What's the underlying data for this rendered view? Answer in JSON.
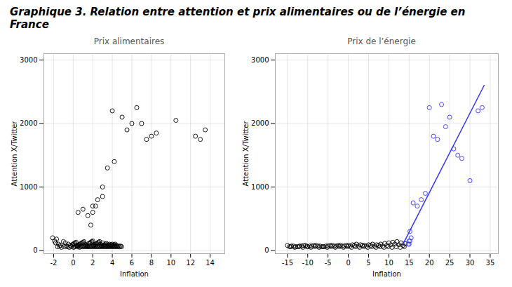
{
  "title": "Graphique 3. Relation entre attention et prix alimentaires ou de l’énergie en France",
  "chart_data": [
    {
      "type": "scatter",
      "title": "Prix alimentaires",
      "xlabel": "Inflation",
      "ylabel": "Attention X/Twitter",
      "xlim": [
        -3,
        15.5
      ],
      "ylim": [
        -50,
        3100
      ],
      "xticks": [
        -2,
        0,
        2,
        4,
        6,
        8,
        10,
        12,
        14
      ],
      "yticks": [
        0,
        1000,
        2000,
        3000
      ],
      "grid": true,
      "marker": "circle",
      "series": [
        {
          "color": "#000000",
          "x": [
            -2.1,
            -1.9,
            -1.8,
            -1.7,
            -1.5,
            -1.3,
            -1.0,
            -0.8,
            -0.5,
            -0.3,
            -0.1,
            0.0,
            0.1,
            0.2,
            0.3,
            0.4,
            0.5,
            0.6,
            0.7,
            0.8,
            0.9,
            1.0,
            1.1,
            1.2,
            1.3,
            1.4,
            1.5,
            1.6,
            1.7,
            1.8,
            1.9,
            2.0,
            2.1,
            2.2,
            2.3,
            2.4,
            2.5,
            2.6,
            2.7,
            2.8,
            2.9,
            3.0,
            3.1,
            3.2,
            3.3,
            3.4,
            3.5,
            3.6,
            3.7,
            3.8,
            3.9,
            4.0,
            4.1,
            4.2,
            4.3,
            4.4,
            -1.6,
            -1.4,
            -1.2,
            -0.9,
            -0.7,
            -0.6,
            -0.4,
            -0.2,
            0.05,
            0.15,
            0.25,
            0.35,
            0.45,
            0.55,
            0.65,
            0.75,
            0.85,
            0.95,
            1.05,
            1.15,
            1.25,
            1.35,
            1.45,
            1.55,
            1.65,
            1.75,
            1.85,
            1.95,
            2.05,
            2.15,
            2.25,
            2.35,
            2.45,
            2.55,
            2.65,
            2.75,
            2.85,
            2.95,
            3.05,
            3.15,
            3.25,
            3.35,
            3.45,
            3.55,
            3.65,
            3.75,
            3.85,
            3.95,
            4.05,
            4.15,
            4.25,
            4.35,
            4.45,
            4.55,
            4.65,
            4.75,
            4.85,
            4.95
          ],
          "values": [
            200,
            150,
            120,
            180,
            100,
            80,
            140,
            120,
            100,
            80,
            90,
            100,
            110,
            120,
            130,
            70,
            80,
            90,
            100,
            110,
            120,
            130,
            140,
            100,
            90,
            80,
            70,
            110,
            120,
            130,
            140,
            150,
            80,
            90,
            100,
            110,
            120,
            130,
            140,
            100,
            80,
            120,
            80,
            90,
            100,
            110,
            80,
            90,
            100,
            80,
            90,
            100,
            80,
            90,
            100,
            80,
            60,
            70,
            50,
            60,
            70,
            60,
            50,
            60,
            50,
            60,
            70,
            80,
            60,
            70,
            50,
            60,
            70,
            60,
            70,
            60,
            70,
            60,
            70,
            60,
            70,
            60,
            70,
            60,
            70,
            60,
            70,
            60,
            70,
            60,
            70,
            60,
            70,
            60,
            70,
            60,
            70,
            60,
            70,
            60,
            70,
            60,
            70,
            60,
            70,
            60,
            70,
            60,
            70,
            60,
            70,
            60,
            70,
            60
          ]
        },
        {
          "color": "#000000",
          "x": [
            0.5,
            1.0,
            1.5,
            1.8,
            2.0,
            2.5,
            3.0
          ],
          "values": [
            600,
            650,
            550,
            400,
            700,
            800,
            850
          ]
        },
        {
          "color": "#000000",
          "x": [
            2.0,
            2.3,
            3.0,
            3.5,
            4.0,
            4.2,
            5.0,
            5.5,
            6.0,
            6.5,
            7.0,
            7.5,
            8.0,
            8.5,
            10.5,
            12.5,
            13.0,
            13.5
          ],
          "values": [
            600,
            700,
            1000,
            1300,
            2200,
            1400,
            2100,
            1900,
            2000,
            2250,
            2000,
            1750,
            1800,
            1850,
            2050,
            1800,
            1750,
            1900
          ]
        }
      ]
    },
    {
      "type": "scatter",
      "title": "Prix de l’énergie",
      "xlabel": "Inflation",
      "ylabel": "Attention X/Twitter",
      "xlim": [
        -18,
        37
      ],
      "ylim": [
        -50,
        3100
      ],
      "xticks": [
        -15,
        -10,
        -5,
        0,
        5,
        10,
        15,
        20,
        25,
        30,
        35
      ],
      "yticks": [
        0,
        1000,
        2000,
        3000
      ],
      "grid": true,
      "marker": "circle",
      "series": [
        {
          "color": "#000000",
          "x": [
            -15,
            -14,
            -13,
            -12,
            -11,
            -10,
            -9,
            -8,
            -7,
            -6,
            -5,
            -4,
            -3,
            -2,
            -1,
            0,
            1,
            2,
            3,
            4,
            5,
            6,
            7,
            8,
            9,
            10,
            11,
            12,
            13,
            14,
            -14.5,
            -13.5,
            -12.5,
            -11.5,
            -10.5,
            -9.5,
            -8.5,
            -7.5,
            -6.5,
            -5.5,
            -4.5,
            -3.5,
            -2.5,
            -1.5,
            -0.5,
            0.5,
            1.5,
            2.5,
            3.5,
            4.5,
            5.5,
            6.5,
            7.5,
            8.5,
            9.5,
            10.5,
            11.5,
            12.5,
            13.5,
            -14.2,
            -13.2,
            -12.2,
            -11.2,
            -10.2,
            -9.2,
            -8.2,
            -7.2,
            -6.2,
            -5.2,
            -4.2,
            -3.2,
            -2.2,
            -1.2,
            -0.2,
            0.8,
            1.8,
            2.8,
            3.8,
            4.8,
            5.8,
            6.8,
            7.8,
            8.8,
            9.8,
            10.8,
            11.8,
            12.8,
            13.8
          ],
          "values": [
            80,
            70,
            60,
            70,
            80,
            60,
            70,
            80,
            70,
            60,
            70,
            80,
            70,
            80,
            70,
            80,
            90,
            100,
            90,
            80,
            90,
            100,
            90,
            100,
            110,
            120,
            130,
            140,
            120,
            110,
            60,
            70,
            60,
            70,
            80,
            70,
            80,
            70,
            60,
            70,
            80,
            70,
            80,
            70,
            80,
            70,
            80,
            70,
            80,
            70,
            80,
            70,
            80,
            70,
            80,
            90,
            100,
            90,
            80,
            60,
            50,
            60,
            50,
            60,
            50,
            60,
            50,
            60,
            50,
            60,
            50,
            60,
            50,
            60,
            50,
            60,
            50,
            60,
            50,
            60,
            50,
            60,
            50,
            60,
            50,
            60,
            50,
            60
          ]
        },
        {
          "color": "#3333FF",
          "x": [
            14.8,
            15.0,
            15.2,
            15.5
          ],
          "values": [
            100,
            100,
            150,
            200
          ]
        },
        {
          "color": "#3333FF",
          "x": [
            15.0,
            15.2,
            16.0,
            17.0,
            18.0,
            19.0,
            20.0,
            21.0,
            22.0,
            23.0,
            24.0,
            25.0,
            26.0,
            27.0,
            28.0,
            30.0,
            32.0,
            33.0
          ],
          "values": [
            150,
            300,
            750,
            700,
            800,
            900,
            2250,
            1800,
            1750,
            2300,
            1950,
            2100,
            1600,
            1500,
            1450,
            1100,
            2200,
            2250
          ]
        },
        {
          "type": "line",
          "color": "#3333FF",
          "x": [
            13.5,
            33.5
          ],
          "values": [
            100,
            2600
          ]
        }
      ]
    }
  ]
}
